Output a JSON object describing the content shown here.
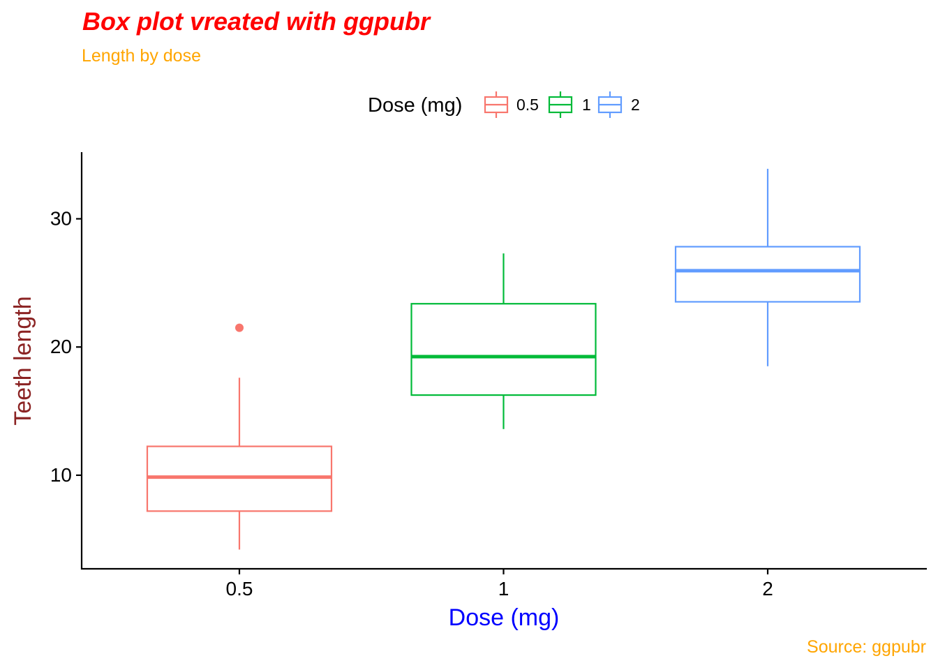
{
  "chart_data": {
    "type": "box",
    "title": "Box plot vreated with ggpubr",
    "subtitle": "Length by dose",
    "caption": "Source: ggpubr",
    "xlabel": "Dose (mg)",
    "ylabel": "Teeth length",
    "categories": [
      "0.5",
      "1",
      "2"
    ],
    "ylim": [
      2.7,
      35.2
    ],
    "yticks": [
      10,
      20,
      30
    ],
    "grid": false,
    "legend": {
      "title": "Dose (mg)",
      "position": "top",
      "entries": [
        "0.5",
        "1",
        "2"
      ]
    },
    "series": [
      {
        "name": "0.5",
        "color": "#F8766D",
        "min": 4.2,
        "q1": 7.2,
        "median": 9.85,
        "q3": 12.25,
        "max": 17.6,
        "outliers": [
          21.5
        ]
      },
      {
        "name": "1",
        "color": "#00BA38",
        "min": 13.6,
        "q1": 16.25,
        "median": 19.25,
        "q3": 23.375,
        "max": 27.3,
        "outliers": []
      },
      {
        "name": "2",
        "color": "#619CFF",
        "min": 18.5,
        "q1": 23.525,
        "median": 25.95,
        "q3": 27.825,
        "max": 33.9,
        "outliers": []
      }
    ],
    "colors": {
      "title": "#FF0000",
      "subtitle": "#FFA500",
      "caption": "#FFA500",
      "xlabel": "#0000FF",
      "ylabel": "#8B2323",
      "axis": "#000000"
    }
  }
}
